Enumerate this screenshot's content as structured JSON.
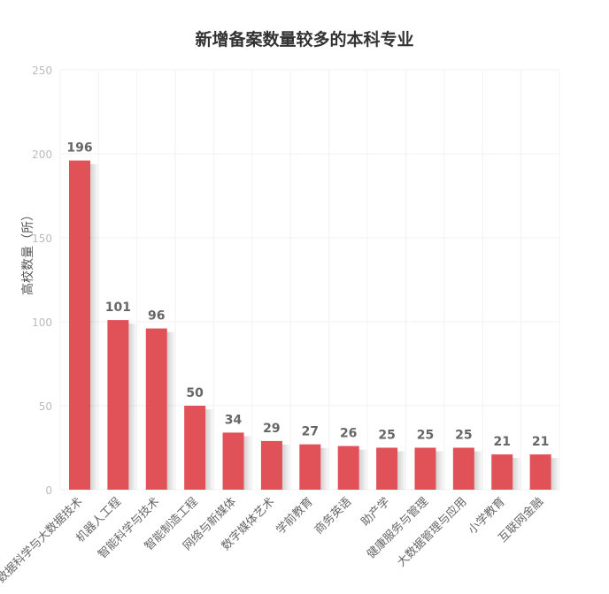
{
  "chart_data": {
    "type": "bar",
    "title": "新增备案数量较多的本科专业",
    "xlabel": "",
    "ylabel": "高校数量（所）",
    "ylim": [
      0,
      250
    ],
    "yticks": [
      0,
      50,
      100,
      150,
      200,
      250
    ],
    "grid": true,
    "bar_color": "#e05257",
    "categories": [
      "数据科学与大数据技术",
      "机器人工程",
      "智能科学与技术",
      "智能制造工程",
      "网络与新媒体",
      "数字媒体艺术",
      "学前教育",
      "商务英语",
      "助产学",
      "健康服务与管理",
      "大数据管理与应用",
      "小学教育",
      "互联网金融"
    ],
    "values": [
      196,
      101,
      96,
      50,
      34,
      29,
      27,
      26,
      25,
      25,
      25,
      21,
      21
    ]
  }
}
